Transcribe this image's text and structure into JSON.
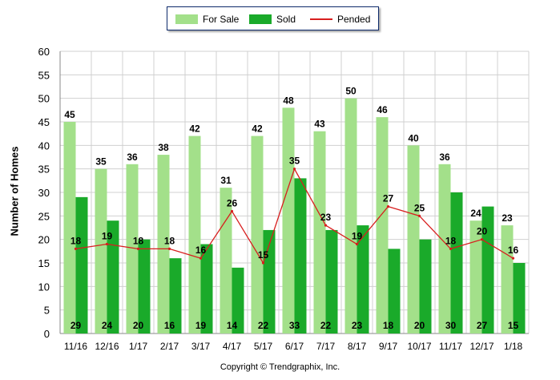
{
  "chart_data": {
    "type": "bar",
    "categories": [
      "11/16",
      "12/16",
      "1/17",
      "2/17",
      "3/17",
      "4/17",
      "5/17",
      "6/17",
      "7/17",
      "8/17",
      "9/17",
      "10/17",
      "11/17",
      "12/17",
      "1/18"
    ],
    "series": [
      {
        "name": "For Sale",
        "kind": "bar",
        "color": "#a3e08a",
        "values": [
          45,
          35,
          36,
          38,
          42,
          31,
          42,
          48,
          43,
          50,
          46,
          40,
          36,
          24,
          23
        ]
      },
      {
        "name": "Sold",
        "kind": "bar",
        "color": "#1aaa2a",
        "values": [
          29,
          24,
          20,
          16,
          19,
          14,
          22,
          33,
          22,
          23,
          18,
          20,
          30,
          27,
          15
        ]
      },
      {
        "name": "Pended",
        "kind": "line",
        "color": "#d81e1e",
        "values": [
          18,
          19,
          18,
          18,
          16,
          26,
          15,
          35,
          23,
          19,
          27,
          25,
          18,
          20,
          16
        ]
      }
    ],
    "ylabel": "Number of Homes",
    "xlabel": "",
    "ylim": [
      0,
      60
    ],
    "yticks": [
      0,
      5,
      10,
      15,
      20,
      25,
      30,
      35,
      40,
      45,
      50,
      55,
      60
    ],
    "grid": true,
    "legend_position": "top-center"
  },
  "legend": {
    "for_sale": "For Sale",
    "sold": "Sold",
    "pended": "Pended"
  },
  "copyright": "Copyright © Trendgraphix, Inc."
}
